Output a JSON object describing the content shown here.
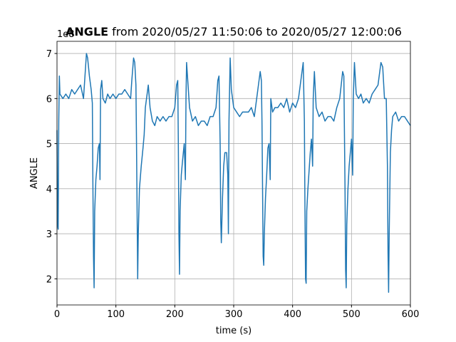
{
  "chart_data": {
    "type": "line",
    "title_bold": "ANGLE",
    "title_rest": "from 2020/05/27 11:50:06 to 2020/05/27 12:00:06",
    "y_offset_label": "1e8",
    "xlabel": "time (s)",
    "ylabel": "ANGLE",
    "grid": true,
    "xlim": [
      0,
      600
    ],
    "ylim": [
      1.42,
      7.27
    ],
    "xticks": [
      0,
      100,
      200,
      300,
      400,
      500,
      600
    ],
    "yticks": [
      2,
      3,
      4,
      5,
      6,
      7
    ],
    "series": [
      {
        "color": "#1f77b4",
        "x": [
          0,
          1,
          2,
          3,
          4,
          5,
          10,
          15,
          20,
          25,
          30,
          35,
          40,
          45,
          48,
          50,
          52,
          55,
          58,
          60,
          61,
          62,
          63,
          64,
          66,
          68,
          70,
          72,
          73,
          74,
          76,
          78,
          82,
          86,
          90,
          95,
          100,
          105,
          110,
          115,
          120,
          125,
          127,
          130,
          132,
          134,
          135,
          136,
          137,
          138,
          140,
          143,
          146,
          148,
          150,
          153,
          155,
          158,
          162,
          166,
          170,
          175,
          180,
          185,
          190,
          195,
          200,
          203,
          205,
          206,
          207,
          208,
          209,
          211,
          213,
          216,
          218,
          219,
          220,
          222,
          225,
          230,
          235,
          240,
          245,
          250,
          255,
          260,
          265,
          270,
          273,
          275,
          277,
          278,
          279,
          281,
          283,
          285,
          288,
          290,
          291,
          292,
          294,
          296,
          300,
          305,
          310,
          315,
          320,
          325,
          330,
          335,
          340,
          345,
          347,
          348,
          349,
          350,
          351,
          352,
          354,
          356,
          358,
          360,
          362,
          363,
          366,
          370,
          375,
          380,
          385,
          390,
          395,
          400,
          405,
          410,
          415,
          418,
          420,
          421,
          422,
          423,
          424,
          426,
          428,
          430,
          432,
          434,
          435,
          437,
          440,
          445,
          450,
          455,
          460,
          465,
          470,
          475,
          480,
          485,
          487,
          489,
          490,
          491,
          492,
          494,
          496,
          498,
          500,
          502,
          503,
          505,
          508,
          512,
          516,
          520,
          525,
          530,
          535,
          540,
          545,
          550,
          553,
          556,
          559,
          561,
          562,
          563,
          564,
          566,
          568,
          570,
          575,
          580,
          585,
          590,
          595,
          600
        ],
        "values": [
          5.3,
          3.2,
          3.1,
          5.5,
          6.5,
          6.1,
          6.0,
          6.1,
          6.0,
          6.2,
          6.1,
          6.2,
          6.3,
          6.0,
          6.6,
          7.0,
          6.9,
          6.5,
          6.2,
          5.9,
          4.0,
          2.5,
          1.8,
          3.5,
          4.2,
          4.5,
          4.9,
          5.0,
          4.2,
          6.2,
          6.4,
          6.0,
          5.9,
          6.1,
          6.0,
          6.1,
          6.0,
          6.1,
          6.1,
          6.2,
          6.1,
          6.0,
          6.4,
          6.9,
          6.8,
          6.3,
          5.0,
          3.5,
          2.0,
          3.0,
          4.0,
          4.5,
          4.9,
          5.2,
          5.8,
          6.1,
          6.3,
          5.8,
          5.5,
          5.4,
          5.6,
          5.5,
          5.6,
          5.5,
          5.6,
          5.6,
          5.8,
          6.3,
          6.4,
          5.0,
          3.0,
          2.1,
          3.5,
          4.3,
          4.6,
          5.0,
          4.2,
          6.0,
          6.8,
          6.4,
          5.8,
          5.5,
          5.6,
          5.4,
          5.5,
          5.5,
          5.4,
          5.6,
          5.6,
          5.8,
          6.4,
          6.5,
          5.0,
          3.3,
          2.8,
          3.8,
          4.5,
          4.8,
          4.8,
          4.3,
          3.0,
          5.5,
          6.9,
          6.2,
          5.8,
          5.7,
          5.6,
          5.7,
          5.7,
          5.7,
          5.8,
          5.6,
          6.1,
          6.6,
          6.4,
          5.5,
          4.0,
          2.5,
          2.3,
          3.0,
          3.8,
          4.3,
          4.9,
          5.0,
          4.2,
          6.0,
          5.7,
          5.8,
          5.8,
          5.9,
          5.8,
          6.0,
          5.7,
          5.9,
          5.8,
          6.0,
          6.5,
          6.8,
          5.5,
          3.5,
          2.0,
          1.9,
          3.5,
          4.0,
          4.4,
          4.8,
          5.1,
          4.5,
          6.0,
          6.6,
          5.8,
          5.6,
          5.7,
          5.5,
          5.6,
          5.6,
          5.5,
          5.8,
          6.0,
          6.6,
          6.5,
          4.0,
          2.2,
          1.8,
          3.2,
          4.0,
          4.5,
          4.8,
          5.1,
          4.3,
          6.0,
          6.8,
          6.1,
          6.0,
          6.1,
          5.9,
          6.0,
          5.9,
          6.1,
          6.2,
          6.3,
          6.8,
          6.7,
          6.0,
          6.0,
          4.5,
          2.6,
          1.7,
          3.0,
          4.8,
          5.3,
          5.6,
          5.7,
          5.5,
          5.6,
          5.6,
          5.5,
          5.4
        ]
      }
    ]
  }
}
